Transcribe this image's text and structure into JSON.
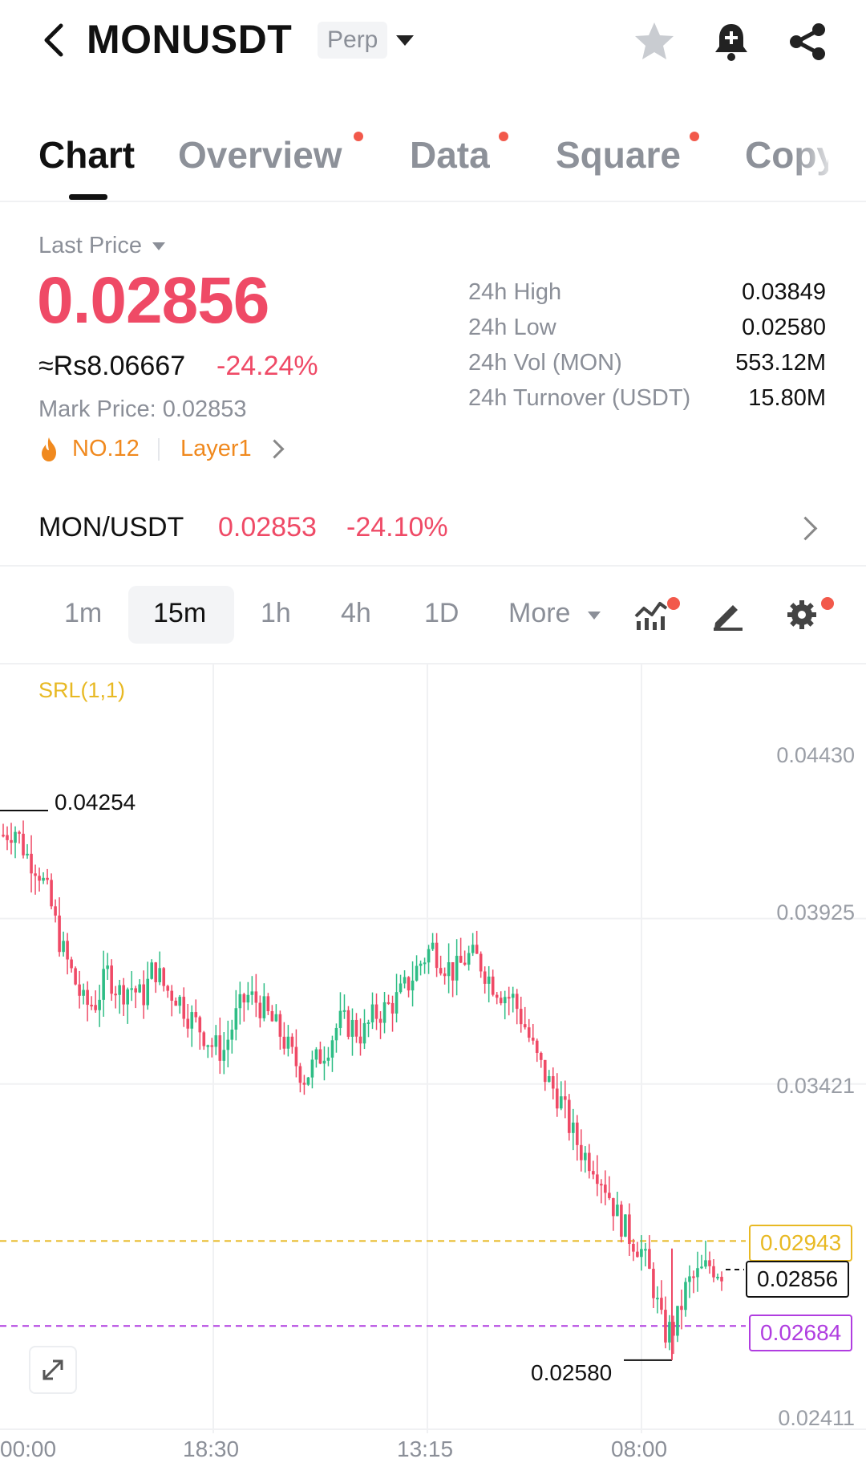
{
  "header": {
    "symbol": "MONUSDT",
    "type_badge": "Perp",
    "icons": [
      "back-icon",
      "star-icon",
      "bell-plus-icon",
      "share-icon"
    ]
  },
  "tabs": [
    {
      "label": "Chart",
      "active": true,
      "dot": false
    },
    {
      "label": "Overview",
      "active": false,
      "dot": true
    },
    {
      "label": "Data",
      "active": false,
      "dot": true
    },
    {
      "label": "Square",
      "active": false,
      "dot": true
    },
    {
      "label": "Copy",
      "active": false,
      "dot": false
    }
  ],
  "price": {
    "label": "Last Price",
    "last": "0.02856",
    "approx": "≈Rs8.06667",
    "change": "-24.24%",
    "mark_label": "Mark Price:",
    "mark_value": "0.02853",
    "rank": "NO.12",
    "category": "Layer1"
  },
  "stats": [
    {
      "label": "24h High",
      "value": "0.03849"
    },
    {
      "label": "24h Low",
      "value": "0.02580"
    },
    {
      "label": "24h Vol (MON)",
      "value": "553.12M"
    },
    {
      "label": "24h Turnover (USDT)",
      "value": "15.80M"
    }
  ],
  "spot": {
    "pair": "MON/USDT",
    "price": "0.02853",
    "change": "-24.10%"
  },
  "intervals": {
    "items": [
      "1m",
      "15m",
      "1h",
      "4h",
      "1D"
    ],
    "active": "15m",
    "more": "More"
  },
  "colors": {
    "up": "#2ebd85",
    "down": "#ef4a66",
    "srl_upper": "#e8b923",
    "srl_lower": "#b03de0"
  },
  "chart_data": {
    "type": "candlestick",
    "indicator": "SRL(1,1)",
    "y_ticks": [
      "0.04430",
      "0.03925",
      "0.03421",
      "0.02411"
    ],
    "x_ticks": [
      "00:00",
      "18:30",
      "13:15",
      "08:00"
    ],
    "high_marker": "0.04254",
    "low_marker": "0.02580",
    "srl_upper": "0.02943",
    "current": "0.02856",
    "srl_lower": "0.02684",
    "close_path": [
      0.0418,
      0.042,
      0.0412,
      0.0408,
      0.0398,
      0.0384,
      0.0375,
      0.0366,
      0.0367,
      0.0376,
      0.037,
      0.0372,
      0.0368,
      0.0378,
      0.0371,
      0.0369,
      0.0363,
      0.0359,
      0.0354,
      0.0352,
      0.0362,
      0.0369,
      0.0367,
      0.0362,
      0.0357,
      0.035,
      0.0344,
      0.0349,
      0.0354,
      0.0361,
      0.036,
      0.0357,
      0.0363,
      0.0365,
      0.0368,
      0.0373,
      0.0379,
      0.0384,
      0.0379,
      0.0376,
      0.0381,
      0.038,
      0.0374,
      0.037,
      0.0368,
      0.036,
      0.035,
      0.0343,
      0.0338,
      0.0328,
      0.0321,
      0.0318,
      0.0311,
      0.0302,
      0.0296,
      0.0292,
      0.0282,
      0.0266,
      0.0268,
      0.0281,
      0.0284,
      0.0287,
      0.0285
    ]
  }
}
